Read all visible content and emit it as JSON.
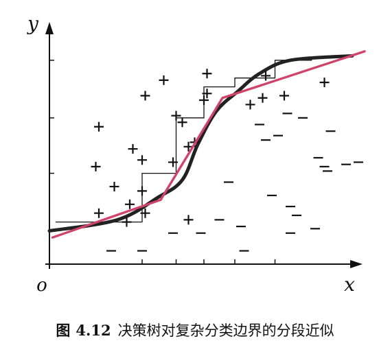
{
  "chart_data": {
    "type": "scatter",
    "xlabel": "x",
    "ylabel": "y",
    "origin_label": "o",
    "xlim": [
      0,
      10
    ],
    "ylim": [
      0,
      10
    ],
    "grid": false,
    "positive_marker": "+",
    "negative_marker": "−",
    "series": [
      {
        "marker": "plus",
        "points": [
          [
            1.6,
            6.2
          ],
          [
            3.1,
            7.6
          ],
          [
            3.7,
            8.3
          ],
          [
            4.0,
            4.6
          ],
          [
            1.5,
            4.4
          ],
          [
            3.0,
            4.7
          ],
          [
            4.1,
            6.7
          ],
          [
            2.7,
            5.2
          ],
          [
            3.0,
            3.3
          ],
          [
            3.1,
            2.3
          ],
          [
            2.1,
            3.5
          ],
          [
            5.0,
            7.4
          ],
          [
            2.5,
            1.9
          ],
          [
            4.3,
            6.4
          ],
          [
            4.5,
            5.3
          ],
          [
            4.7,
            5.5
          ],
          [
            5.1,
            7.7
          ],
          [
            5.1,
            8.6
          ],
          [
            6.5,
            7.2
          ],
          [
            6.9,
            7.5
          ],
          [
            7.0,
            8.5
          ],
          [
            7.6,
            7.6
          ],
          [
            8.9,
            8.2
          ],
          [
            1.6,
            2.3
          ],
          [
            2.6,
            2.7
          ],
          [
            4.5,
            2.0
          ]
        ]
      },
      {
        "marker": "minus",
        "points": [
          [
            2.0,
            0.6
          ],
          [
            3.0,
            0.6
          ],
          [
            4.0,
            1.4
          ],
          [
            4.9,
            1.4
          ],
          [
            5.5,
            2.0
          ],
          [
            5.8,
            3.7
          ],
          [
            6.2,
            1.7
          ],
          [
            6.8,
            6.3
          ],
          [
            7.0,
            5.6
          ],
          [
            7.4,
            5.8
          ],
          [
            7.7,
            6.8
          ],
          [
            7.8,
            1.4
          ],
          [
            8.7,
            4.8
          ],
          [
            8.9,
            4.4
          ],
          [
            7.2,
            3.1
          ],
          [
            8.2,
            6.6
          ],
          [
            7.8,
            2.6
          ],
          [
            9.1,
            6.0
          ],
          [
            9.0,
            4.2
          ],
          [
            8.0,
            2.2
          ],
          [
            8.6,
            1.6
          ],
          [
            9.6,
            4.5
          ],
          [
            10.0,
            4.6
          ],
          [
            6.3,
            0.6
          ]
        ]
      }
    ],
    "curves": {
      "true_boundary": {
        "color": "#222222",
        "points": [
          [
            0.0,
            1.5
          ],
          [
            2.2,
            2.0
          ],
          [
            3.5,
            3.0
          ],
          [
            4.3,
            3.8
          ],
          [
            4.8,
            5.4
          ],
          [
            5.4,
            6.9
          ],
          [
            6.1,
            7.8
          ],
          [
            6.8,
            8.6
          ],
          [
            7.8,
            9.2
          ],
          [
            9.8,
            9.4
          ]
        ]
      },
      "piecewise_linear": {
        "color": "#d0436a",
        "points": [
          [
            0.1,
            1.2
          ],
          [
            3.6,
            2.9
          ],
          [
            5.6,
            7.5
          ],
          [
            10.2,
            9.6
          ]
        ]
      },
      "axis_parallel_steps": {
        "color": "#111111",
        "points": [
          [
            0.2,
            1.9
          ],
          [
            3.0,
            1.9
          ],
          [
            3.0,
            4.1
          ],
          [
            4.1,
            4.1
          ],
          [
            4.1,
            6.6
          ],
          [
            5.0,
            6.6
          ],
          [
            5.0,
            8.0
          ],
          [
            6.0,
            8.0
          ],
          [
            6.0,
            8.4
          ],
          [
            7.3,
            8.4
          ],
          [
            7.3,
            9.2
          ],
          [
            8.5,
            9.2
          ]
        ]
      }
    }
  },
  "caption": {
    "label": "图",
    "number": "4.12",
    "text": "决策树对复杂分类边界的分段近似"
  }
}
